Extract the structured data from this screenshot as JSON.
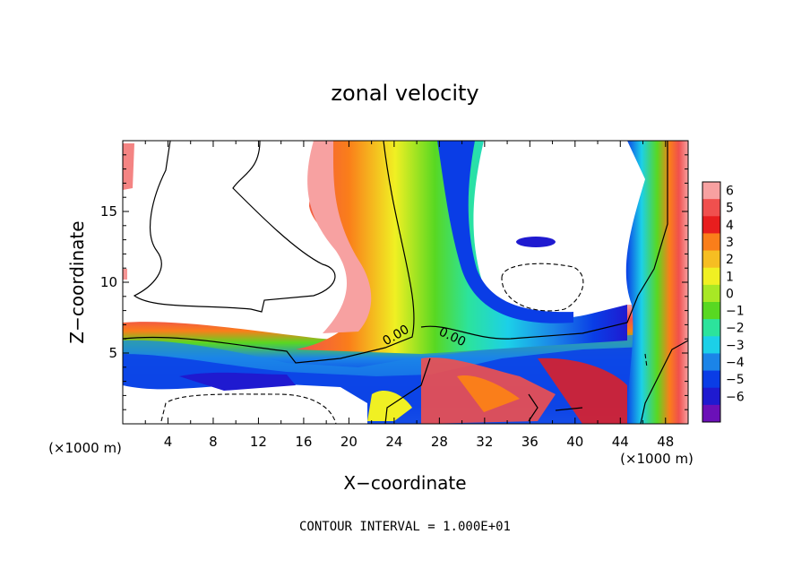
{
  "chart_data": {
    "type": "heatmap",
    "title": "zonal velocity",
    "xlabel": "X−coordinate",
    "ylabel": "Z−coordinate",
    "x_unit": "(×1000 m)",
    "y_unit": "(×1000 m)",
    "xlim": [
      0,
      50
    ],
    "ylim": [
      0,
      20
    ],
    "x_ticks": [
      "4",
      "8",
      "12",
      "16",
      "20",
      "24",
      "28",
      "32",
      "36",
      "40",
      "44",
      "48"
    ],
    "y_ticks": [
      "5",
      "10",
      "15"
    ],
    "colorbar": {
      "ticks": [
        "6",
        "5",
        "4",
        "3",
        "2",
        "1",
        "0",
        "−1",
        "−2",
        "−3",
        "−4",
        "−5",
        "−6"
      ],
      "colors": [
        "#f7a1a1",
        "#f0504e",
        "#e81e1e",
        "#fa7e1a",
        "#f6be22",
        "#f0f023",
        "#a8e825",
        "#58d822",
        "#2ce39c",
        "#1cd0e8",
        "#1b84e8",
        "#0a3de6",
        "#1f1ad0",
        "#6b10b8"
      ]
    },
    "contour_labels": [
      "0.00",
      "0.00"
    ],
    "footer": "CONTOUR INTERVAL = 1.000E+01"
  }
}
